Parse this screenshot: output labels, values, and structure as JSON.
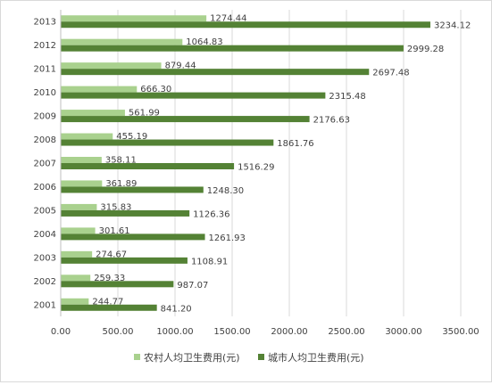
{
  "chart_data": {
    "type": "bar",
    "orientation": "horizontal",
    "categories": [
      "2001",
      "2002",
      "2003",
      "2004",
      "2005",
      "2006",
      "2007",
      "2008",
      "2009",
      "2010",
      "2011",
      "2012",
      "2013"
    ],
    "series": [
      {
        "name": "农村人均卫生费用(元)",
        "color": "#a9d18e",
        "values": [
          244.77,
          259.33,
          274.67,
          301.61,
          315.83,
          361.89,
          358.11,
          455.19,
          561.99,
          666.3,
          879.44,
          1064.83,
          1274.44
        ],
        "labels": [
          "244.77",
          "259.33",
          "274.67",
          "301.61",
          "315.83",
          "361.89",
          "358.11",
          "455.19",
          "561.99",
          "666.30",
          "879.44",
          "1064.83",
          "1274.44"
        ]
      },
      {
        "name": "城市人均卫生费用(元)",
        "color": "#548235",
        "values": [
          841.2,
          987.07,
          1108.91,
          1261.93,
          1126.36,
          1248.3,
          1516.29,
          1861.76,
          2176.63,
          2315.48,
          2697.48,
          2999.28,
          3234.12
        ],
        "labels": [
          "841.20",
          "987.07",
          "1108.91",
          "1261.93",
          "1126.36",
          "1248.30",
          "1516.29",
          "1861.76",
          "2176.63",
          "2315.48",
          "2697.48",
          "2999.28",
          "3234.12"
        ]
      }
    ],
    "xlim": [
      0,
      3500
    ],
    "xticks": [
      0,
      500,
      1000,
      1500,
      2000,
      2500,
      3000,
      3500
    ],
    "xtick_labels": [
      "0.00",
      "500.00",
      "1000.00",
      "1500.00",
      "2000.00",
      "2500.00",
      "3000.00",
      "3500.00"
    ],
    "grid": "vertical",
    "legend": "bottom"
  }
}
